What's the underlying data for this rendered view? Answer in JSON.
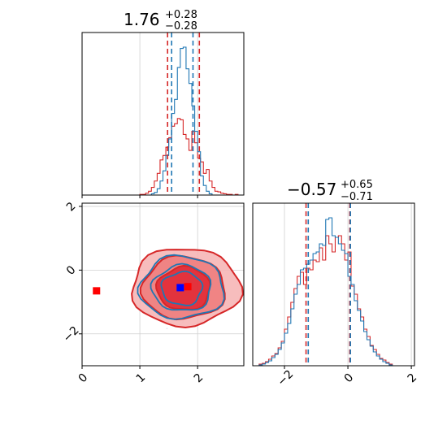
{
  "colors": {
    "red": "#d62728",
    "blue": "#1f77b4",
    "red_fill_outer": "#f6b2b2",
    "red_fill_mid": "#ee7a7a",
    "red_fill_inner": "#e02530",
    "grid": "#d0d0d0",
    "marker_red": "#ff0000",
    "marker_blue": "#0000ff"
  },
  "chart_data": {
    "type": "corner",
    "grid": true,
    "parameters": [
      {
        "median": "1.76",
        "plus": "+0.28",
        "minus": "−0.28",
        "range": [
          0,
          2.8
        ],
        "ticks": [
          0,
          1,
          2
        ],
        "tick_labels": [
          "0",
          "1",
          "2"
        ],
        "red_quantile_lines": [
          1.48,
          2.03
        ],
        "blue_quantile_lines": [
          1.55,
          1.92
        ],
        "red_hist": {
          "bins": [
            1.0,
            1.05,
            1.1,
            1.15,
            1.2,
            1.25,
            1.3,
            1.35,
            1.4,
            1.45,
            1.5,
            1.55,
            1.6,
            1.65,
            1.7,
            1.75,
            1.8,
            1.85,
            1.9,
            1.95,
            2.0,
            2.05,
            2.1,
            2.15,
            2.2,
            2.25,
            2.3,
            2.35,
            2.4,
            2.45,
            2.5,
            2.55,
            2.6,
            2.65,
            2.7,
            2.75,
            2.8
          ],
          "counts": [
            1,
            1,
            3,
            6,
            12,
            22,
            34,
            55,
            62,
            75,
            90,
            108,
            112,
            120,
            118,
            95,
            88,
            70,
            100,
            82,
            58,
            52,
            34,
            40,
            22,
            12,
            6,
            5,
            3,
            2,
            1,
            1,
            0,
            1,
            0,
            0
          ]
        },
        "blue_hist": {
          "bins": [
            1.2,
            1.25,
            1.3,
            1.35,
            1.4,
            1.45,
            1.5,
            1.55,
            1.6,
            1.65,
            1.7,
            1.75,
            1.8,
            1.85,
            1.9,
            1.95,
            2.0,
            2.05,
            2.1,
            2.15,
            2.2,
            2.25
          ],
          "counts": [
            2,
            4,
            10,
            22,
            38,
            62,
            88,
            128,
            150,
            200,
            230,
            232,
            198,
            175,
            140,
            100,
            68,
            30,
            15,
            6,
            2
          ]
        }
      },
      {
        "median": "−0.57",
        "plus": "+0.65",
        "minus": "−0.71",
        "range": [
          -3.0,
          2.1
        ],
        "ticks": [
          -2,
          0,
          2
        ],
        "tick_labels": [
          "−2",
          "0",
          "2"
        ],
        "red_quantile_lines": [
          -1.32,
          0.06
        ],
        "blue_quantile_lines": [
          -1.25,
          0.08
        ],
        "red_hist": {
          "bins": [
            -2.8,
            -2.7,
            -2.6,
            -2.5,
            -2.4,
            -2.3,
            -2.2,
            -2.1,
            -2.0,
            -1.9,
            -1.8,
            -1.7,
            -1.6,
            -1.5,
            -1.4,
            -1.3,
            -1.2,
            -1.1,
            -1.0,
            -0.9,
            -0.8,
            -0.7,
            -0.6,
            -0.5,
            -0.4,
            -0.3,
            -0.2,
            -0.1,
            0.0,
            0.1,
            0.2,
            0.3,
            0.4,
            0.5,
            0.6,
            0.7,
            0.8,
            0.9,
            1.0,
            1.1,
            1.2,
            1.3,
            1.4
          ],
          "counts": [
            2,
            3,
            5,
            8,
            12,
            15,
            22,
            30,
            45,
            60,
            78,
            95,
            110,
            115,
            100,
            120,
            118,
            130,
            128,
            145,
            130,
            160,
            150,
            140,
            158,
            160,
            150,
            130,
            140,
            98,
            88,
            70,
            60,
            45,
            36,
            25,
            20,
            14,
            9,
            7,
            4,
            2
          ]
        },
        "blue_hist": {
          "bins": [
            -2.8,
            -2.7,
            -2.6,
            -2.5,
            -2.4,
            -2.3,
            -2.2,
            -2.1,
            -2.0,
            -1.9,
            -1.8,
            -1.7,
            -1.6,
            -1.5,
            -1.4,
            -1.3,
            -1.2,
            -1.1,
            -1.0,
            -0.9,
            -0.8,
            -0.7,
            -0.6,
            -0.5,
            -0.4,
            -0.3,
            -0.2,
            -0.1,
            0.0,
            0.1,
            0.2,
            0.3,
            0.4,
            0.5,
            0.6,
            0.7,
            0.8,
            0.9,
            1.0,
            1.1,
            1.2,
            1.3,
            1.4
          ],
          "counts": [
            1,
            2,
            4,
            6,
            10,
            14,
            20,
            28,
            40,
            52,
            70,
            88,
            100,
            118,
            120,
            125,
            130,
            138,
            140,
            150,
            148,
            180,
            182,
            160,
            158,
            150,
            142,
            138,
            110,
            100,
            80,
            68,
            55,
            42,
            32,
            24,
            17,
            12,
            8,
            5,
            3,
            1
          ]
        }
      }
    ],
    "joint": {
      "x_range": [
        0,
        2.8
      ],
      "y_range": [
        -3.0,
        2.1
      ],
      "red_contours": [
        {
          "cx": 1.79,
          "cy": -0.53,
          "rx": 0.94,
          "ry": 1.22
        },
        {
          "cx": 1.76,
          "cy": -0.56,
          "rx": 0.72,
          "ry": 0.98
        },
        {
          "cx": 1.76,
          "cy": -0.58,
          "rx": 0.46,
          "ry": 0.68
        }
      ],
      "blue_contours": [
        {
          "cx": 1.73,
          "cy": -0.55,
          "rx": 0.73,
          "ry": 0.98
        },
        {
          "cx": 1.73,
          "cy": -0.57,
          "rx": 0.51,
          "ry": 0.72
        },
        {
          "cx": 1.73,
          "cy": -0.58,
          "rx": 0.35,
          "ry": 0.52
        }
      ],
      "markers": [
        {
          "x": 0.25,
          "y": -0.65,
          "color": "red"
        },
        {
          "x": 1.83,
          "y": -0.52,
          "color": "red"
        },
        {
          "x": 1.7,
          "y": -0.55,
          "color": "blue"
        }
      ]
    }
  }
}
